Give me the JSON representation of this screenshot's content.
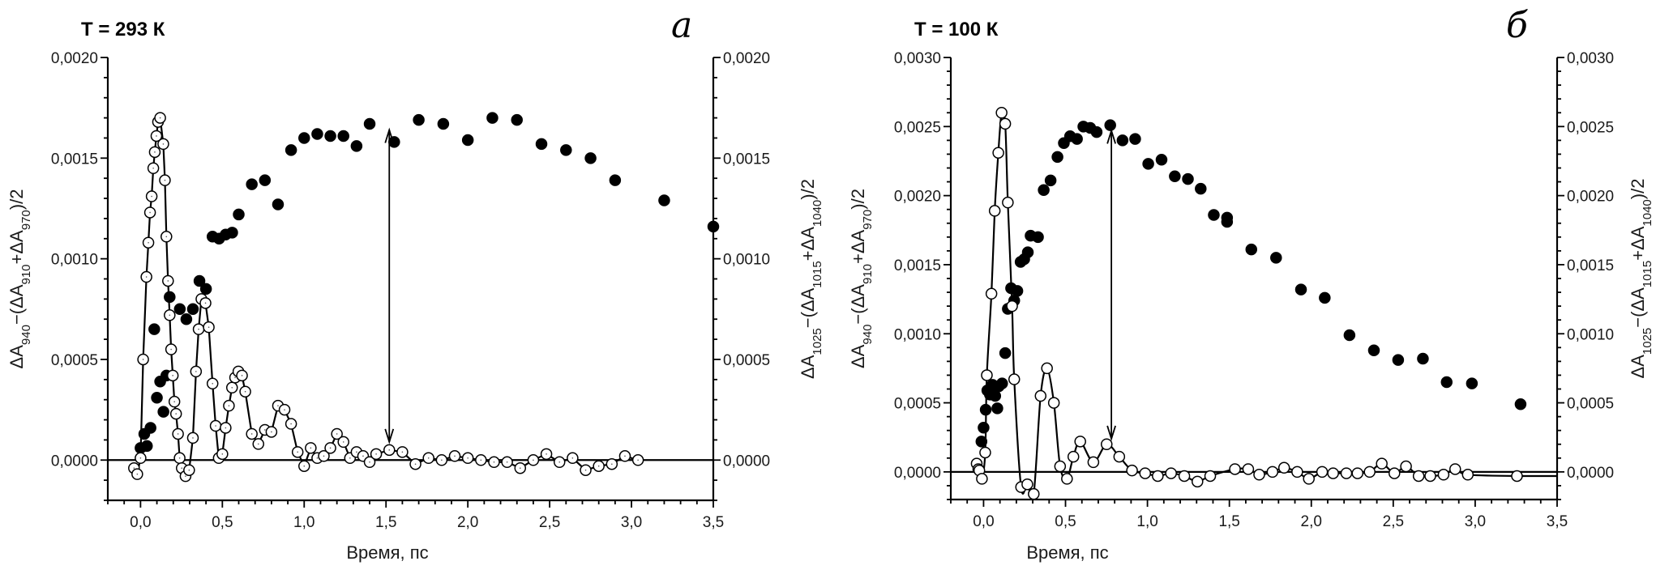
{
  "colors": {
    "filled": "#000000",
    "open_fill": "#ffffff",
    "line": "#000000",
    "axis": "#000000"
  },
  "chart_data": [
    {
      "type": "scatter",
      "panel_letter": "а",
      "title": "T = 293 К",
      "xlabel": "Время, пс",
      "ylabel_left": "ΔA940−(ΔA910+ΔA970)/2",
      "ylabel_right": "ΔA1025−(ΔA1015+ΔA1040)/2",
      "xlim": [
        -0.2,
        3.5
      ],
      "ylim": [
        -0.0002,
        0.002
      ],
      "x_ticks": [
        "0,0",
        "0,5",
        "1,0",
        "1,5",
        "2,0",
        "2,5",
        "3,0",
        "3,5"
      ],
      "x_tick_values": [
        0,
        0.5,
        1,
        1.5,
        2,
        2.5,
        3,
        3.5
      ],
      "y_ticks": [
        "0,0000",
        "0,0005",
        "0,0010",
        "0,0015",
        "0,0020"
      ],
      "y_tick_values": [
        0,
        0.0005,
        0.001,
        0.0015,
        0.002
      ],
      "grid": false,
      "zero_line": true,
      "arrow": {
        "x": 1.52,
        "y_from": 0.00164,
        "y_to": 9e-05,
        "double_headed": true
      },
      "series": [
        {
          "marker": "filled-circle",
          "connected": false,
          "x": [
            0,
            0.023,
            0.039,
            0.061,
            0.084,
            0.1,
            0.12,
            0.14,
            0.158,
            0.178,
            0.24,
            0.28,
            0.32,
            0.36,
            0.4,
            0.44,
            0.48,
            0.52,
            0.56,
            0.6,
            0.68,
            0.76,
            0.84,
            0.92,
            1.0,
            1.08,
            1.16,
            1.24,
            1.32,
            1.4,
            1.55,
            1.7,
            1.85,
            2.0,
            2.15,
            2.3,
            2.45,
            2.6,
            2.75,
            2.9,
            3.2,
            3.5
          ],
          "y": [
            6e-05,
            0.00013,
            7e-05,
            0.00016,
            0.00065,
            0.00031,
            0.00039,
            0.00024,
            0.00042,
            0.00081,
            0.00075,
            0.0007,
            0.00075,
            0.00089,
            0.00085,
            0.00111,
            0.0011,
            0.00112,
            0.00113,
            0.00122,
            0.00137,
            0.00139,
            0.00127,
            0.00154,
            0.0016,
            0.00162,
            0.00161,
            0.00161,
            0.00156,
            0.00167,
            0.00158,
            0.00169,
            0.00167,
            0.00159,
            0.0017,
            0.00169,
            0.00157,
            0.00154,
            0.0015,
            0.00139,
            0.00129,
            0.00116
          ]
        },
        {
          "marker": "open-circle",
          "connected": "straight",
          "x": [
            -0.04,
            -0.02,
            0,
            0.016,
            0.036,
            0.048,
            0.058,
            0.068,
            0.078,
            0.087,
            0.097,
            0.107,
            0.12,
            0.139,
            0.149,
            0.158,
            0.168,
            0.178,
            0.187,
            0.197,
            0.207,
            0.217,
            0.229,
            0.239,
            0.252,
            0.275,
            0.297,
            0.32,
            0.339,
            0.355,
            0.372,
            0.397,
            0.417,
            0.44,
            0.459,
            0.478,
            0.5,
            0.52,
            0.54,
            0.559,
            0.578,
            0.598,
            0.62,
            0.64,
            0.68,
            0.72,
            0.76,
            0.8,
            0.84,
            0.88,
            0.92,
            0.96,
            1.0,
            1.04,
            1.08,
            1.12,
            1.16,
            1.2,
            1.24,
            1.28,
            1.32,
            1.36,
            1.4,
            1.44,
            1.52,
            1.6,
            1.68,
            1.76,
            1.84,
            1.92,
            2.0,
            2.08,
            2.16,
            2.24,
            2.32,
            2.4,
            2.48,
            2.56,
            2.64,
            2.72,
            2.8,
            2.88,
            2.96,
            3.04
          ],
          "y": [
            -4e-05,
            -7e-05,
            1e-05,
            0.0005,
            0.00091,
            0.00108,
            0.00123,
            0.00131,
            0.00145,
            0.00153,
            0.00161,
            0.00168,
            0.0017,
            0.00157,
            0.00139,
            0.00111,
            0.00089,
            0.00072,
            0.00055,
            0.00042,
            0.00029,
            0.00023,
            0.00013,
            1e-05,
            -4e-05,
            -8e-05,
            -5e-05,
            0.00011,
            0.00044,
            0.00065,
            0.0008,
            0.00078,
            0.00066,
            0.00038,
            0.00017,
            1e-05,
            3e-05,
            0.00016,
            0.00027,
            0.00036,
            0.00041,
            0.00044,
            0.00042,
            0.00034,
            0.00013,
            8e-05,
            0.00015,
            0.00014,
            0.00027,
            0.00025,
            0.00018,
            4e-05,
            -3e-05,
            6e-05,
            1e-05,
            2e-05,
            6e-05,
            0.00013,
            9e-05,
            1e-05,
            4e-05,
            2e-05,
            -1e-05,
            3e-05,
            5e-05,
            4e-05,
            -2e-05,
            1e-05,
            0,
            2e-05,
            1e-05,
            0,
            -1e-05,
            -1e-05,
            -4e-05,
            0,
            3e-05,
            -1e-05,
            1e-05,
            -5e-05,
            -3e-05,
            -2e-05,
            2e-05,
            0
          ]
        }
      ]
    },
    {
      "type": "scatter",
      "panel_letter": "б",
      "title": "T = 100 К",
      "xlabel": "Время, пс",
      "ylabel_left": "ΔA940−(ΔA910+ΔA970)/2",
      "ylabel_right": "ΔA1025−(ΔA1015+ΔA1040)/2",
      "xlim": [
        -0.2,
        3.5
      ],
      "ylim": [
        -0.0002,
        0.003
      ],
      "x_ticks": [
        "0,0",
        "0,5",
        "1,0",
        "1,5",
        "2,0",
        "2,5",
        "3,0",
        "3,5"
      ],
      "x_tick_values": [
        0,
        0.5,
        1,
        1.5,
        2,
        2.5,
        3,
        3.5
      ],
      "y_ticks": [
        "0,0000",
        "0,0005",
        "0,0010",
        "0,0015",
        "0,0020",
        "0,0025",
        "0,0030"
      ],
      "y_tick_values": [
        0,
        0.0005,
        0.001,
        0.0015,
        0.002,
        0.0025,
        0.003
      ],
      "grid": false,
      "zero_line": true,
      "arrow": {
        "x": 0.78,
        "y_from": 0.00247,
        "y_to": 0.00024,
        "double_headed": true
      },
      "series": [
        {
          "marker": "filled-circle",
          "connected": false,
          "x": [
            -0.013,
            0,
            0.013,
            0.023,
            0.039,
            0.055,
            0.071,
            0.084,
            0.093,
            0.113,
            0.132,
            0.148,
            0.168,
            0.187,
            0.206,
            0.226,
            0.248,
            0.27,
            0.287,
            0.332,
            0.367,
            0.409,
            0.451,
            0.49,
            0.528,
            0.57,
            0.609,
            0.651,
            0.69,
            0.773,
            0.848,
            0.925,
            1.005,
            1.086,
            1.167,
            1.247,
            1.325,
            1.405,
            1.486,
            1.486,
            1.634,
            1.785,
            1.937,
            2.082,
            2.233,
            2.382,
            2.53,
            2.681,
            2.826,
            2.98,
            3.277
          ],
          "y": [
            0.00022,
            0.00032,
            0.00045,
            0.00059,
            0.00056,
            0.00063,
            0.00055,
            0.00046,
            0.00062,
            0.00064,
            0.00086,
            0.00118,
            0.00133,
            0.00124,
            0.00131,
            0.00152,
            0.00154,
            0.00159,
            0.00171,
            0.0017,
            0.00204,
            0.00211,
            0.00228,
            0.00238,
            0.00243,
            0.00241,
            0.0025,
            0.00249,
            0.00246,
            0.00251,
            0.0024,
            0.00241,
            0.00223,
            0.00226,
            0.00214,
            0.00212,
            0.00205,
            0.00186,
            0.00184,
            0.00181,
            0.00161,
            0.00155,
            0.00132,
            0.00126,
            0.00099,
            0.00088,
            0.00081,
            0.00082,
            0.00065,
            0.00064,
            0.00049
          ]
        },
        {
          "marker": "open-circle",
          "connected": "smooth-fit",
          "x": [
            -0.042,
            -0.032,
            -0.026,
            -0.01,
            0.01,
            0.02,
            0.048,
            0.068,
            0.09,
            0.11,
            0.132,
            0.148,
            0.174,
            0.187,
            0.229,
            0.267,
            0.306,
            0.348,
            0.387,
            0.429,
            0.467,
            0.509,
            0.548,
            0.59,
            0.67,
            0.751,
            0.828,
            0.906,
            0.986,
            1.063,
            1.144,
            1.225,
            1.305,
            1.383,
            1.534,
            1.615,
            1.682,
            1.763,
            1.834,
            1.914,
            1.985,
            2.066,
            2.133,
            2.214,
            2.282,
            2.356,
            2.43,
            2.507,
            2.578,
            2.655,
            2.726,
            2.807,
            2.878,
            2.955,
            3.255
          ],
          "y": [
            6e-05,
            2e-05,
            1e-05,
            -5e-05,
            0.00014,
            0.0007,
            0.00129,
            0.00189,
            0.00231,
            0.0026,
            0.00252,
            0.00195,
            0.0012,
            0.00067,
            -0.00011,
            -9e-05,
            -0.00016,
            0.00055,
            0.00075,
            0.0005,
            4e-05,
            -5e-05,
            0.00011,
            0.00022,
            7e-05,
            0.0002,
            0.00011,
            1e-05,
            -1e-05,
            -3e-05,
            -1e-05,
            -3e-05,
            -7e-05,
            -3e-05,
            2e-05,
            2e-05,
            -2e-05,
            0,
            3e-05,
            0,
            -5e-05,
            0,
            -1e-05,
            -1e-05,
            -1e-05,
            0,
            6e-05,
            -1e-05,
            4e-05,
            -3e-05,
            -3e-05,
            -2e-05,
            2e-05,
            -2e-05,
            -3e-05
          ]
        }
      ]
    }
  ]
}
